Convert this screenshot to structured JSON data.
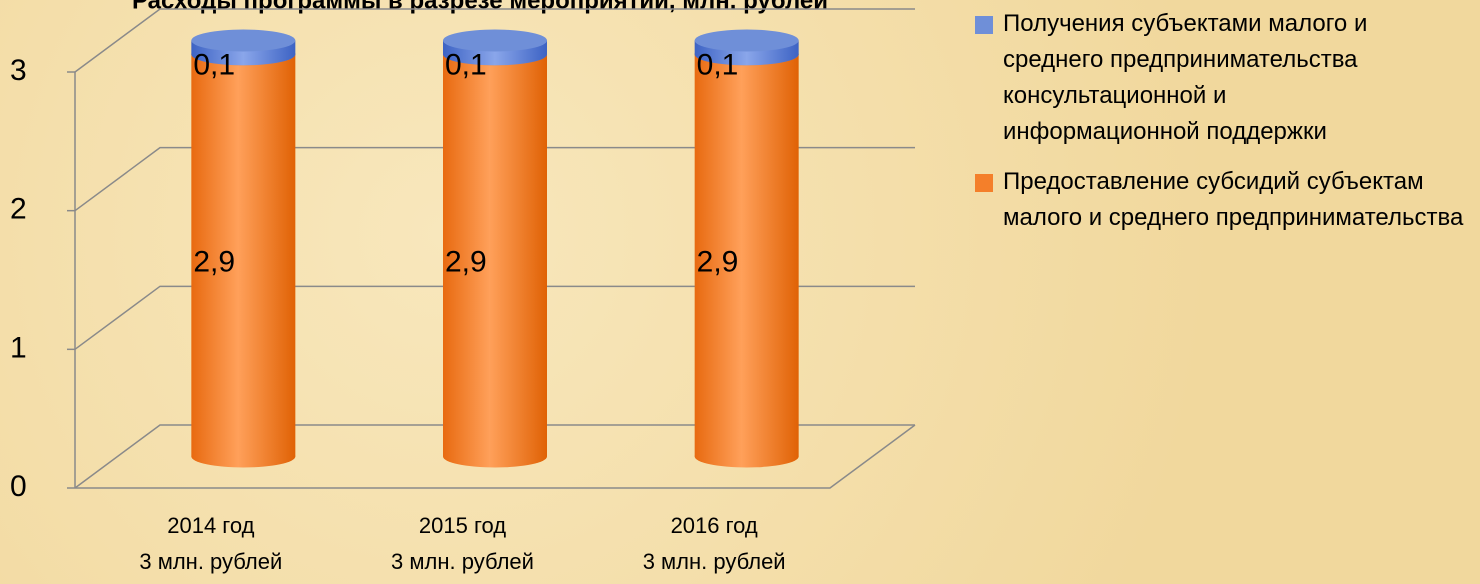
{
  "chart_data": {
    "type": "bar3d_stacked",
    "title": "Расходы программы в разрезе мероприятий, млн. рублей",
    "categories": [
      [
        "2014 год",
        "3 млн. рублей"
      ],
      [
        "2015 год",
        "3 млн. рублей"
      ],
      [
        "2016 год",
        "3 млн. рублей"
      ]
    ],
    "series": [
      {
        "name": "Получения субъектами малого и среднего предпринимательства консультационной и информационной поддержки",
        "color": "#6f8fd8",
        "values": [
          0.1,
          0.1,
          0.1
        ],
        "value_labels": [
          "0,1",
          "0,1",
          "0,1"
        ]
      },
      {
        "name": "Предоставление субсидий субъектам малого и среднего предпринимательства",
        "color": "#f47f2a",
        "values": [
          2.9,
          2.9,
          2.9
        ],
        "value_labels": [
          "2,9",
          "2,9",
          "2,9"
        ]
      }
    ],
    "ylim": [
      0,
      3
    ],
    "yticks": [
      0,
      1,
      2,
      3
    ],
    "grid": true,
    "legend": "right"
  }
}
